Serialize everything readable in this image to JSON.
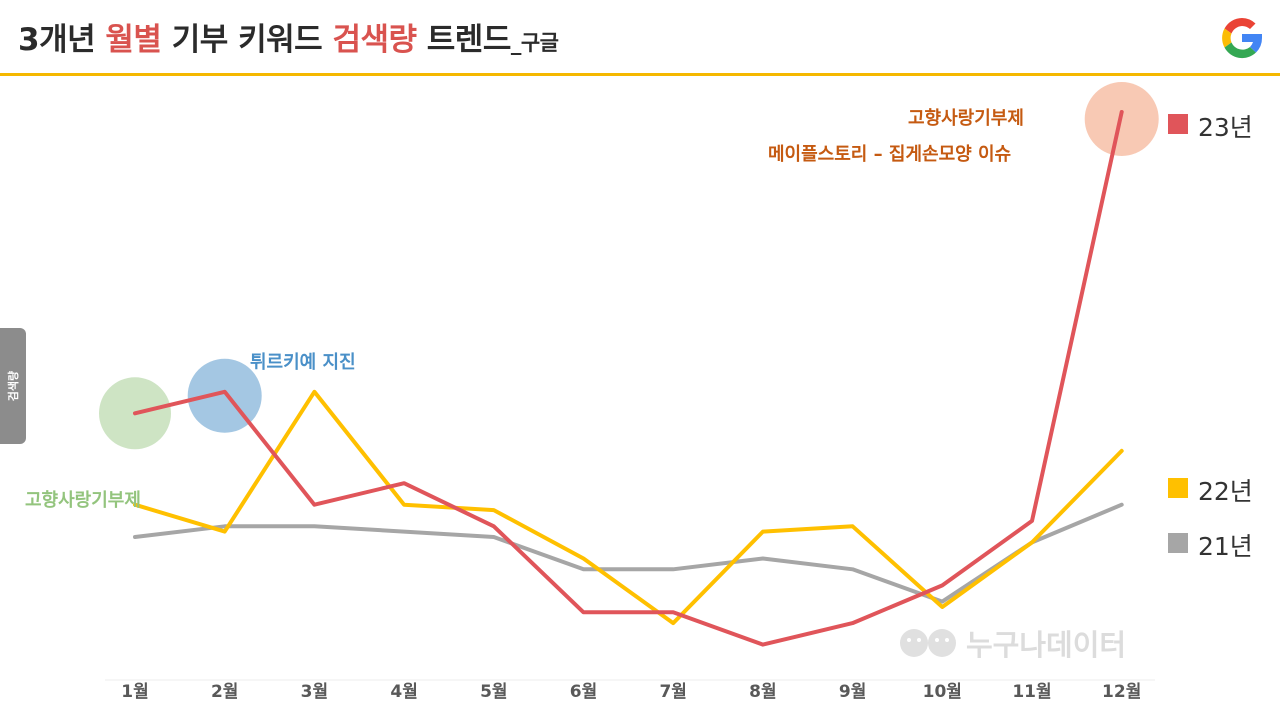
{
  "header": {
    "title_prefix": "3개년 ",
    "title_hl1": "월별",
    "title_mid": " 기부 키워드 ",
    "title_hl2": "검색량",
    "title_end": " 트렌드",
    "title_sub": "_구글"
  },
  "side_label": "검색량",
  "watermark": "누구나데이터",
  "colors": {
    "accent_rule": "#f5b800",
    "series_23": "#e0555a",
    "series_22": "#ffc000",
    "series_21": "#a6a6a6",
    "ann_green": "#93c47d",
    "ann_blue": "#4a90c8",
    "ann_orange": "#c55a11"
  },
  "annotations": {
    "green_label": "고향사랑기부제",
    "blue_label": "튀르키예 지진",
    "orange_line1": "고향사랑기부제",
    "orange_line2": "메이플스토리 – 집게손모양 이슈"
  },
  "chart_data": {
    "type": "line",
    "categories": [
      "1월",
      "2월",
      "3월",
      "4월",
      "5월",
      "6월",
      "7월",
      "8월",
      "9월",
      "10월",
      "11월",
      "12월"
    ],
    "y_axis": "unlabeled relative search volume (no ticks shown)",
    "ylim": [
      0,
      100
    ],
    "grid": false,
    "legend_position": "right",
    "series": [
      {
        "name": "23년",
        "color": "#e0555a",
        "values": [
          44,
          48,
          27,
          31,
          23,
          7,
          7,
          1,
          5,
          12,
          24,
          100
        ]
      },
      {
        "name": "22년",
        "color": "#ffc000",
        "values": [
          27,
          22,
          48,
          27,
          26,
          17,
          5,
          22,
          23,
          8,
          20,
          37
        ]
      },
      {
        "name": "21년",
        "color": "#a6a6a6",
        "values": [
          21,
          23,
          23,
          22,
          21,
          15,
          15,
          17,
          15,
          9,
          20,
          27
        ]
      }
    ]
  }
}
